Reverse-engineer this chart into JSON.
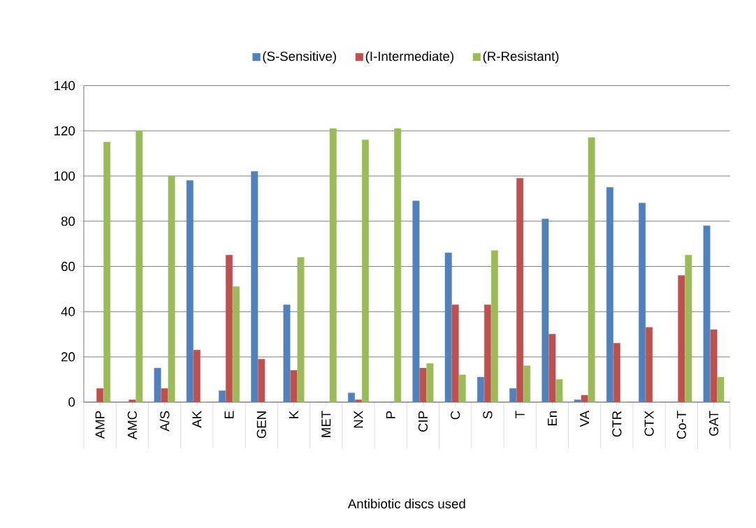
{
  "chart_data": {
    "type": "bar",
    "xlabel": "Antibiotic discs used",
    "categories": [
      "AMP",
      "AMC",
      "A/S",
      "AK",
      "E",
      "GEN",
      "K",
      "MET",
      "NX",
      "P",
      "CIP",
      "C",
      "S",
      "T",
      "En",
      "VA",
      "CTR",
      "CTX",
      "Co-T",
      "GAT"
    ],
    "series": [
      {
        "name": "(S-Sensitive)",
        "color": "#4f81bd",
        "values": [
          0,
          0,
          15,
          98,
          5,
          102,
          43,
          0,
          4,
          0,
          89,
          66,
          11,
          6,
          81,
          1,
          95,
          88,
          0,
          78
        ]
      },
      {
        "name": "(I-Intermediate)",
        "color": "#c0504d",
        "values": [
          6,
          1,
          6,
          23,
          65,
          19,
          14,
          0,
          1,
          0,
          15,
          43,
          43,
          99,
          30,
          3,
          26,
          33,
          56,
          32
        ]
      },
      {
        "name": "(R-Resistant)",
        "color": "#9bbb59",
        "values": [
          115,
          120,
          100,
          0,
          51,
          0,
          64,
          121,
          116,
          121,
          17,
          12,
          67,
          16,
          10,
          117,
          0,
          0,
          65,
          11
        ]
      }
    ],
    "ylim": [
      0,
      140
    ],
    "yticks": [
      0,
      20,
      40,
      60,
      80,
      100,
      120,
      140
    ],
    "grid": "y",
    "legend": "top"
  }
}
